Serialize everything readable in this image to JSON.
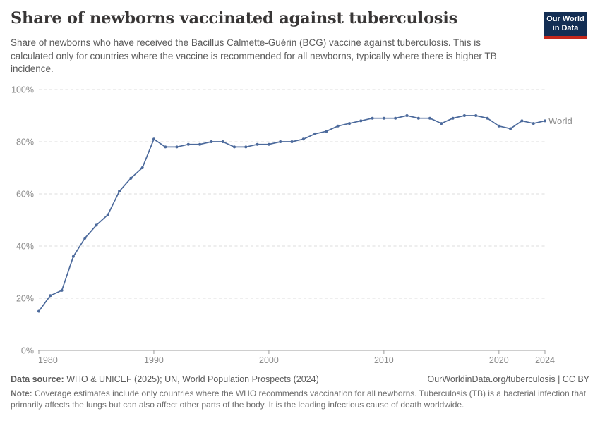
{
  "header": {
    "title": "Share of newborns vaccinated against tuberculosis",
    "subtitle": "Share of newborns who have received the Bacillus Calmette-Guérin (BCG) vaccine against tuberculosis. This is calculated only for countries where the vaccine is recommended for all newborns, typically where there is higher TB incidence."
  },
  "logo": {
    "line1": "Our World",
    "line2": "in Data",
    "bg_color": "#132E54",
    "stripe_color": "#C5281C",
    "text_color": "#ffffff"
  },
  "chart_data": {
    "type": "line",
    "title": "Share of newborns vaccinated against tuberculosis",
    "x": [
      1980,
      1981,
      1982,
      1983,
      1984,
      1985,
      1986,
      1987,
      1988,
      1989,
      1990,
      1991,
      1992,
      1993,
      1994,
      1995,
      1996,
      1997,
      1998,
      1999,
      2000,
      2001,
      2002,
      2003,
      2004,
      2005,
      2006,
      2007,
      2008,
      2009,
      2010,
      2011,
      2012,
      2013,
      2014,
      2015,
      2016,
      2017,
      2018,
      2019,
      2020,
      2021,
      2022,
      2023,
      2024
    ],
    "series": [
      {
        "name": "World",
        "color": "#4C6A9C",
        "values": [
          15,
          21,
          23,
          36,
          43,
          48,
          52,
          61,
          66,
          70,
          81,
          78,
          78,
          79,
          79,
          80,
          80,
          78,
          78,
          79,
          79,
          80,
          80,
          81,
          83,
          84,
          86,
          87,
          88,
          89,
          89,
          89,
          90,
          89,
          89,
          87,
          89,
          90,
          90,
          89,
          86,
          85,
          88,
          87,
          88
        ]
      }
    ],
    "xlabel": "",
    "ylabel": "",
    "ylim": [
      0,
      100
    ],
    "yticks": [
      0,
      20,
      40,
      60,
      80,
      100
    ],
    "ytick_suffix": "%",
    "xticks": [
      1980,
      1990,
      2000,
      2010,
      2020,
      2024
    ],
    "grid": "horizontal dashed",
    "legend": "end-of-line entity label",
    "entity_label": "World"
  },
  "footer": {
    "data_source_label": "Data source:",
    "data_source_text": "WHO & UNICEF (2025); UN, World Population Prospects (2024)",
    "link": "OurWorldinData.org/tuberculosis | CC BY",
    "note_label": "Note:",
    "note_text": "Coverage estimates include only countries where the WHO recommends vaccination for all newborns. Tuberculosis (TB) is a bacterial infection that primarily affects the lungs but can also affect other parts of the body. It is the leading infectious cause of death worldwide."
  },
  "colors": {
    "line": "#4C6A9C",
    "title": "#383636",
    "subtitle": "#5b5b5b",
    "axis_text": "#8a8a8a",
    "gridline": "#dcdcdc",
    "axis_line": "#9c9c9c",
    "footer_text": "#5b5b5b",
    "note_text": "#6e6e6e"
  }
}
